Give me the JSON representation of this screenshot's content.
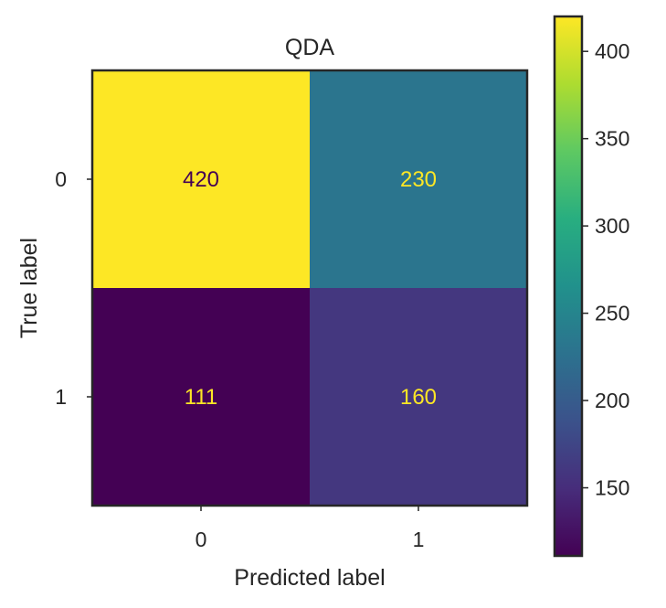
{
  "chart_data": {
    "type": "heatmap",
    "title": "QDA",
    "xlabel": "Predicted label",
    "ylabel": "True label",
    "x_categories": [
      "0",
      "1"
    ],
    "y_categories": [
      "0",
      "1"
    ],
    "matrix": [
      [
        420,
        230
      ],
      [
        111,
        160
      ]
    ],
    "colormap": "viridis",
    "colorbar": {
      "range": [
        111,
        420
      ],
      "ticks": [
        150,
        200,
        250,
        300,
        350,
        400
      ]
    },
    "cell_text_colors": {
      "on_dark": "#fde725",
      "on_light": "#440154"
    },
    "grid": false
  }
}
